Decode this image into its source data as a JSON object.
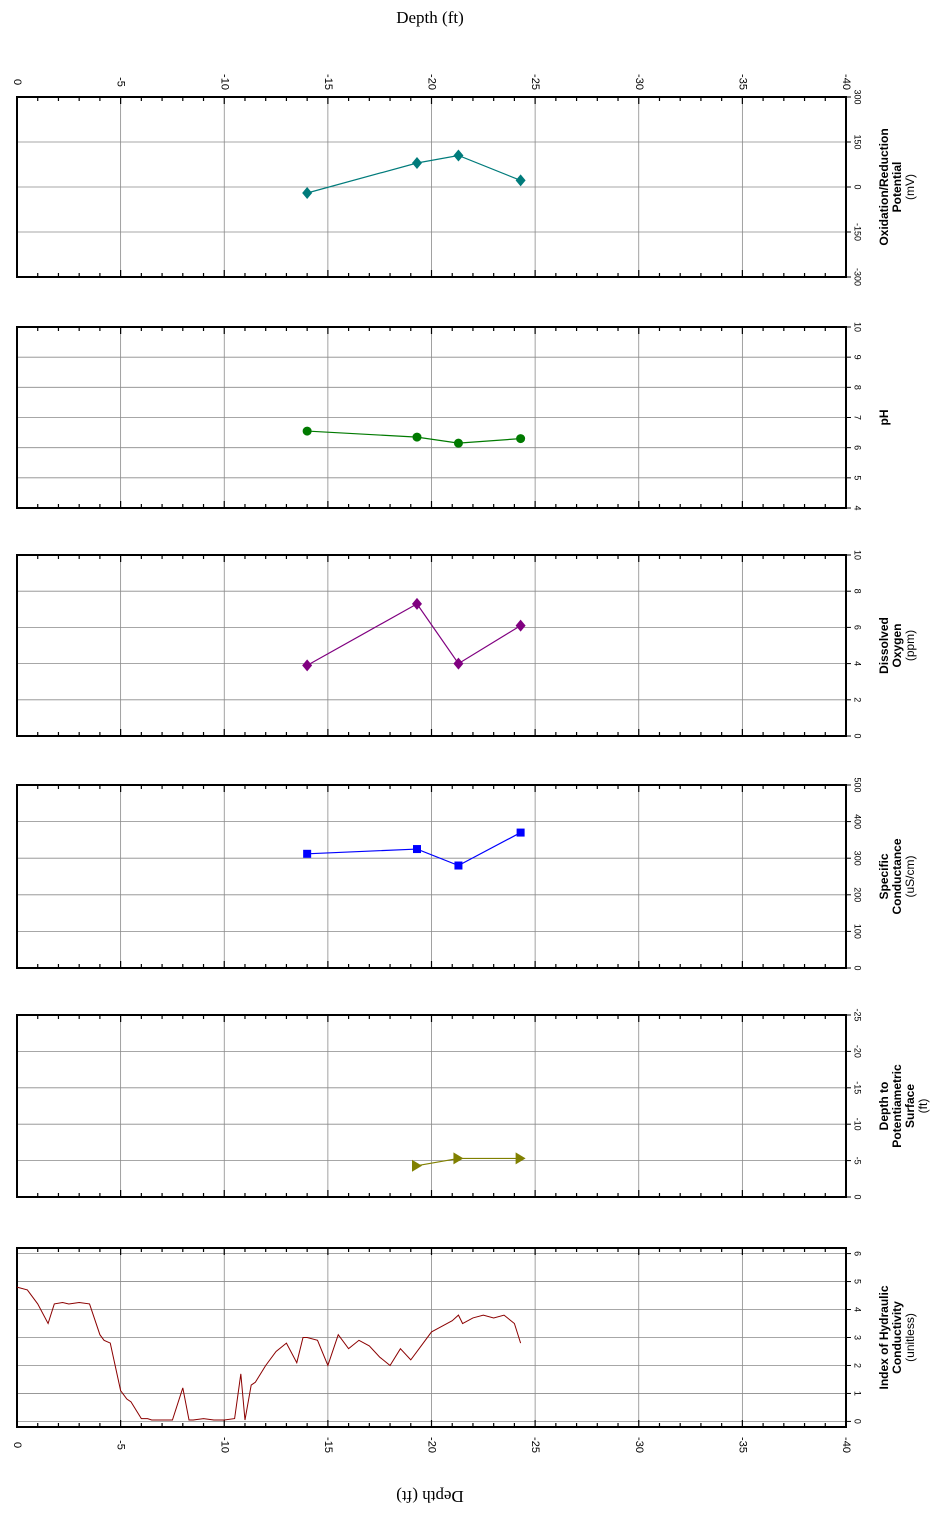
{
  "depth_axis_title": "Depth (ft)",
  "chart_data": {
    "type": "line",
    "x_axis": {
      "label": "Depth (ft)",
      "range": [
        0,
        -40
      ],
      "ticks": [
        0,
        -5,
        -10,
        -15,
        -20,
        -25,
        -30,
        -35,
        -40
      ],
      "tick_labels": [
        "0",
        "-5",
        "-10",
        "-15",
        "-20",
        "-25",
        "-30",
        "-35",
        "-40"
      ]
    },
    "grid": true,
    "panels": [
      {
        "name": "orp",
        "label_lines": [
          "Oxidation/Reduction",
          "Potential"
        ],
        "unit": "(mV)",
        "ylim": [
          -300,
          300
        ],
        "yticks": [
          -300,
          -150,
          0,
          150,
          300
        ],
        "marker": "diamond",
        "color": "#007b7b",
        "x": [
          -14.0,
          -19.3,
          -21.3,
          -24.3
        ],
        "y": [
          -20,
          80,
          105,
          22
        ]
      },
      {
        "name": "ph",
        "label_lines": [
          "pH"
        ],
        "unit": "",
        "ylim": [
          4,
          10
        ],
        "yticks": [
          4,
          5,
          6,
          7,
          8,
          9,
          10
        ],
        "marker": "circle",
        "color": "#007a00",
        "x": [
          -14.0,
          -19.3,
          -21.3,
          -24.3
        ],
        "y": [
          6.55,
          6.35,
          6.15,
          6.3
        ]
      },
      {
        "name": "dissolved-oxygen",
        "label_lines": [
          "Dissolved",
          "Oxygen"
        ],
        "unit": "(ppm)",
        "ylim": [
          0,
          10
        ],
        "yticks": [
          0,
          2,
          4,
          6,
          8,
          10
        ],
        "marker": "diamond",
        "color": "#800080",
        "x": [
          -14.0,
          -19.3,
          -21.3,
          -24.3
        ],
        "y": [
          3.9,
          7.3,
          4.0,
          6.1
        ]
      },
      {
        "name": "specific-conductance",
        "label_lines": [
          "Specific",
          "Conductance"
        ],
        "unit": "(uS/cm)",
        "ylim": [
          0,
          500
        ],
        "yticks": [
          0,
          100,
          200,
          300,
          400,
          500
        ],
        "marker": "square",
        "color": "#0000ff",
        "x": [
          -14.0,
          -19.3,
          -21.3,
          -24.3
        ],
        "y": [
          312,
          325,
          280,
          370
        ]
      },
      {
        "name": "depth-to-potentiometric-surface",
        "label_lines": [
          "Depth to",
          "Potentiametric",
          "Surface"
        ],
        "unit": "(ft)",
        "ylim": [
          0,
          -25
        ],
        "yticks": [
          0,
          -5,
          -10,
          -15,
          -20,
          -25
        ],
        "marker": "triangle-right",
        "color": "#808000",
        "x": [
          -19.3,
          -21.3,
          -24.3
        ],
        "y": [
          -4.3,
          -5.3,
          -5.3
        ]
      },
      {
        "name": "hydraulic-conductivity-index",
        "label_lines": [
          "Index of Hydraulic",
          "Conductivity"
        ],
        "unit": "(unitless)",
        "ylim": [
          -0.2,
          6.2
        ],
        "yticks": [
          0,
          1,
          2,
          3,
          4,
          5,
          6
        ],
        "marker": "none",
        "color": "#8b0000",
        "x": [
          0,
          -0.5,
          -1.0,
          -1.5,
          -1.8,
          -2.2,
          -2.5,
          -3.0,
          -3.5,
          -4.0,
          -4.2,
          -4.5,
          -5.0,
          -5.3,
          -5.5,
          -6.0,
          -6.3,
          -6.5,
          -7.0,
          -7.5,
          -8.0,
          -8.3,
          -8.5,
          -9.0,
          -9.5,
          -10.0,
          -10.5,
          -10.8,
          -11.0,
          -11.3,
          -11.5,
          -12.0,
          -12.5,
          -13.0,
          -13.5,
          -13.8,
          -14.0,
          -14.5,
          -15.0,
          -15.5,
          -16.0,
          -16.5,
          -17.0,
          -17.5,
          -18.0,
          -18.5,
          -19.0,
          -19.5,
          -20.0,
          -20.5,
          -21.0,
          -21.3,
          -21.5,
          -22.0,
          -22.5,
          -23.0,
          -23.5,
          -24.0,
          -24.3
        ],
        "y": [
          4.8,
          4.7,
          4.2,
          3.5,
          4.2,
          4.25,
          4.2,
          4.25,
          4.2,
          3.1,
          2.9,
          2.8,
          1.1,
          0.8,
          0.7,
          0.1,
          0.1,
          0.05,
          0.05,
          0.05,
          1.2,
          0.05,
          0.05,
          0.1,
          0.05,
          0.05,
          0.1,
          1.7,
          0.05,
          1.3,
          1.4,
          2.0,
          2.5,
          2.8,
          2.1,
          3.0,
          3.0,
          2.9,
          2.0,
          3.1,
          2.6,
          2.9,
          2.7,
          2.3,
          2.0,
          2.6,
          2.2,
          2.7,
          3.2,
          3.4,
          3.6,
          3.8,
          3.5,
          3.7,
          3.8,
          3.7,
          3.8,
          3.5,
          2.8
        ]
      }
    ]
  }
}
